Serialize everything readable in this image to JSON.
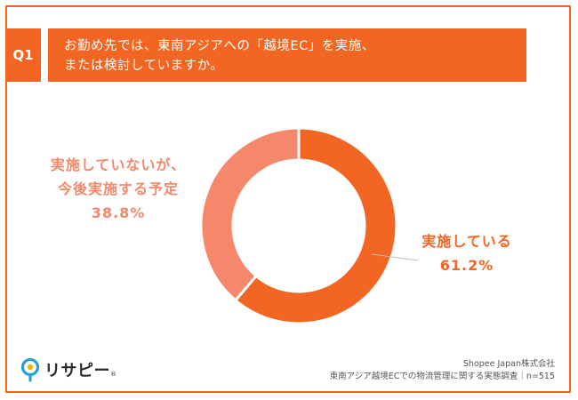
{
  "question": {
    "tag": "Q1",
    "lines": [
      "お勤め先では、東南アジアへの「越境EC」を実施、",
      "または検討していますか。"
    ]
  },
  "chart_data": {
    "type": "pie",
    "donut": true,
    "slices": [
      {
        "label": "実施している",
        "value": 61.2,
        "display": "61.2%",
        "color": "#f26522"
      },
      {
        "label": "実施していないが、今後実施する予定",
        "value": 38.8,
        "display": "38.8%",
        "color": "#f5886a"
      }
    ]
  },
  "labels": {
    "left": {
      "line1": "実施していないが、",
      "line2": "今後実施する予定",
      "value": "38.8%"
    },
    "right": {
      "line1": "実施している",
      "value": "61.2%"
    }
  },
  "footer": {
    "logo_text": "リサピー",
    "logo_mark": "®",
    "company": "Shopee Japan株式会社",
    "survey": "東南アジア越境ECでの物流管理に関する実態調査｜n=515"
  },
  "colors": {
    "accent": "#f26522",
    "secondary": "#f5886a",
    "leader": "#bdbdbd"
  }
}
